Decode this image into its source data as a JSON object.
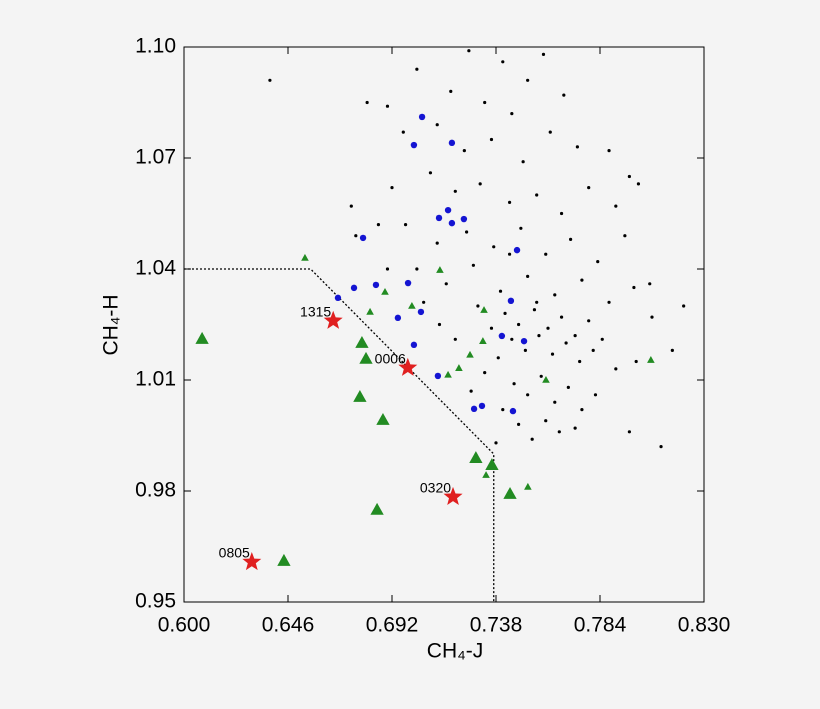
{
  "chart_data": {
    "type": "scatter",
    "x_label": "CH₄-J",
    "y_label": "CH₄-H",
    "xlim": [
      0.6,
      0.83
    ],
    "ylim": [
      0.95,
      1.1
    ],
    "xticks": [
      {
        "value": 0.6,
        "label": "0.600"
      },
      0.646,
      0.692,
      0.738,
      0.784,
      {
        "value": 0.83,
        "label": "0.830"
      }
    ],
    "yticks": [
      0.95,
      0.98,
      1.01,
      1.04,
      1.07,
      {
        "value": 1.1,
        "label": "1.10"
      }
    ],
    "series": [
      {
        "marker": "line",
        "color": "#000000",
        "x": [
          0.6,
          0.656,
          0.737,
          0.737
        ],
        "y": [
          1.04,
          1.04,
          0.99,
          0.95
        ]
      },
      {
        "marker": "dot",
        "color": "#000000",
        "x": [
          0.703,
          0.718,
          0.726,
          0.741,
          0.752,
          0.733,
          0.759,
          0.712,
          0.745,
          0.768,
          0.681,
          0.69,
          0.697,
          0.724,
          0.736,
          0.75,
          0.762,
          0.774,
          0.788,
          0.797,
          0.709,
          0.72,
          0.731,
          0.744,
          0.756,
          0.767,
          0.779,
          0.791,
          0.801,
          0.692,
          0.698,
          0.712,
          0.725,
          0.737,
          0.749,
          0.76,
          0.771,
          0.783,
          0.795,
          0.806,
          0.703,
          0.716,
          0.728,
          0.74,
          0.752,
          0.764,
          0.776,
          0.788,
          0.799,
          0.73,
          0.742,
          0.748,
          0.755,
          0.761,
          0.767,
          0.773,
          0.779,
          0.785,
          0.736,
          0.745,
          0.751,
          0.757,
          0.763,
          0.769,
          0.775,
          0.781,
          0.791,
          0.739,
          0.733,
          0.746,
          0.752,
          0.758,
          0.764,
          0.77,
          0.776,
          0.782,
          0.727,
          0.741,
          0.748,
          0.76,
          0.766,
          0.773,
          0.738,
          0.754,
          0.797,
          0.811,
          0.816,
          0.807,
          0.72,
          0.713,
          0.706,
          0.69,
          0.686,
          0.674,
          0.676,
          0.638,
          0.821,
          0.8,
          0.744,
          0.756
        ],
        "y": [
          1.094,
          1.088,
          1.099,
          1.096,
          1.091,
          1.085,
          1.098,
          1.079,
          1.082,
          1.087,
          1.085,
          1.084,
          1.077,
          1.072,
          1.075,
          1.069,
          1.077,
          1.073,
          1.072,
          1.065,
          1.066,
          1.061,
          1.063,
          1.058,
          1.06,
          1.055,
          1.062,
          1.057,
          1.063,
          1.062,
          1.052,
          1.047,
          1.05,
          1.046,
          1.051,
          1.044,
          1.048,
          1.042,
          1.049,
          1.036,
          1.04,
          1.036,
          1.041,
          1.034,
          1.038,
          1.033,
          1.037,
          1.031,
          1.035,
          1.03,
          1.028,
          1.025,
          1.029,
          1.024,
          1.027,
          1.022,
          1.026,
          1.021,
          1.024,
          1.021,
          1.018,
          1.022,
          1.017,
          1.02,
          1.015,
          1.018,
          1.013,
          1.016,
          1.012,
          1.009,
          1.006,
          1.011,
          1.004,
          1.008,
          1.002,
          1.006,
          1.007,
          1.002,
          0.998,
          0.999,
          0.996,
          0.997,
          0.993,
          0.994,
          0.996,
          0.992,
          1.018,
          1.027,
          1.021,
          1.025,
          1.031,
          1.04,
          1.052,
          1.057,
          1.049,
          1.091,
          1.03,
          1.015,
          1.044,
          1.031
        ]
      },
      {
        "marker": "circle",
        "color": "#1414d2",
        "x": [
          0.7053,
          0.7017,
          0.7185,
          0.7168,
          0.7128,
          0.7185,
          0.7238,
          0.6792,
          0.7473,
          0.6849,
          0.6752,
          0.6681,
          0.6991,
          0.6946,
          0.7048,
          0.7017,
          0.7123,
          0.7446,
          0.7406,
          0.7504,
          0.7283,
          0.7318,
          0.7455
        ],
        "y": [
          1.0811,
          1.0735,
          1.0741,
          1.0559,
          1.0538,
          1.0524,
          1.0535,
          1.0484,
          1.0451,
          1.0357,
          1.0349,
          1.0322,
          1.0362,
          1.0268,
          1.0284,
          1.0195,
          1.0111,
          1.0314,
          1.0219,
          1.0205,
          1.0022,
          1.003,
          1.0016
        ]
      },
      {
        "marker": "small-triangle",
        "color": "#228b22",
        "x": [
          0.6535,
          0.6823,
          0.6889,
          0.7008,
          0.7132,
          0.7327,
          0.7265,
          0.7216,
          0.7168,
          0.7521,
          0.7336,
          0.8065,
          0.7322,
          0.7601
        ],
        "y": [
          1.043,
          1.0284,
          1.0338,
          1.03,
          1.0397,
          1.0289,
          1.0168,
          1.0132,
          1.0114,
          0.9811,
          0.9843,
          1.0154,
          1.0205,
          1.01
        ]
      },
      {
        "marker": "triangle",
        "color": "#228b22",
        "x": [
          0.608,
          0.6787,
          0.6805,
          0.6778,
          0.688,
          0.6854,
          0.7291,
          0.7362,
          0.7442,
          0.6442
        ],
        "y": [
          1.0211,
          1.02,
          1.0157,
          1.0054,
          0.9992,
          0.9749,
          0.9889,
          0.987,
          0.9792,
          0.9611
        ]
      },
      {
        "marker": "star",
        "color": "#e02020",
        "x": [
          0.666,
          0.699,
          0.719,
          0.63
        ],
        "y": [
          1.026,
          1.0133,
          0.9784,
          0.9608
        ],
        "labels": [
          "1315",
          "0006",
          "0320",
          "0805"
        ]
      }
    ]
  }
}
